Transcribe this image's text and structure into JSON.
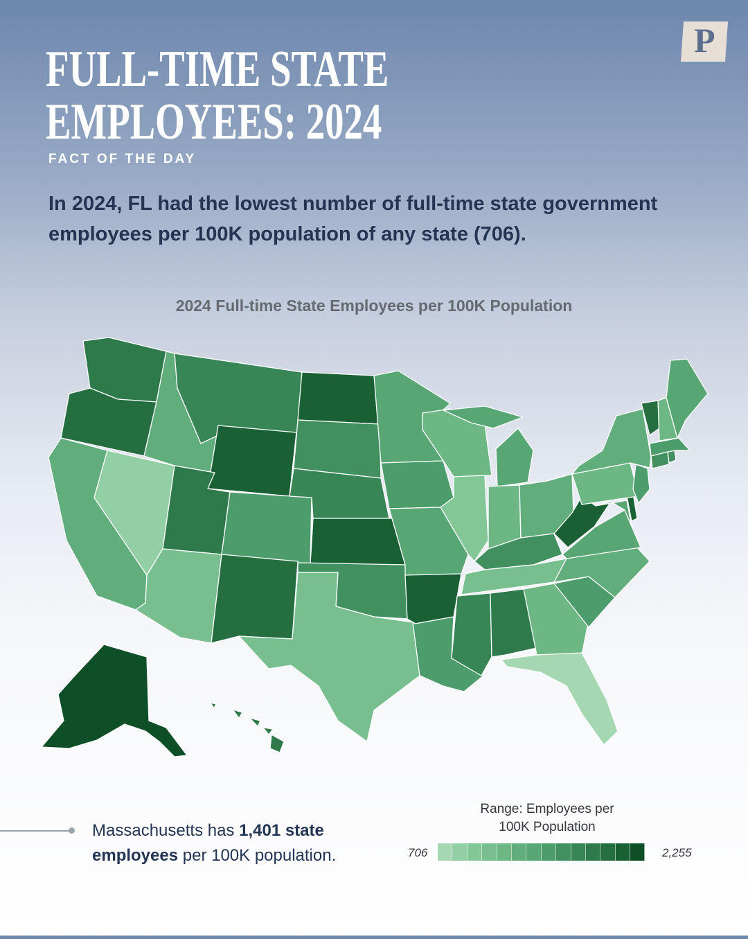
{
  "header": {
    "title_line1": "FULL-TIME STATE",
    "title_line2": "EMPLOYEES: 2024",
    "kicker": "FACT OF THE DAY",
    "logo_letter": "P"
  },
  "fact_text": "In 2024, FL had the lowest number of full-time state government employees per 100K population of any state (706).",
  "map": {
    "title": "2024 Full-time State Employees per 100K Population",
    "color_scale": [
      "#a5d8b2",
      "#93cfa4",
      "#84c797",
      "#78bf8f",
      "#6cb784",
      "#61ae7c",
      "#57a674",
      "#4c9d6b",
      "#428f60",
      "#388556",
      "#2e7a4b",
      "#246e40",
      "#1a6035",
      "#0f4f28"
    ],
    "states": {
      "WA": {
        "shade": 10
      },
      "OR": {
        "shade": 11
      },
      "CA": {
        "shade": 5
      },
      "NV": {
        "shade": 1
      },
      "ID": {
        "shade": 5
      },
      "MT": {
        "shade": 9
      },
      "WY": {
        "shade": 12
      },
      "UT": {
        "shade": 10
      },
      "AZ": {
        "shade": 3
      },
      "CO": {
        "shade": 7
      },
      "NM": {
        "shade": 11
      },
      "ND": {
        "shade": 12
      },
      "SD": {
        "shade": 8
      },
      "NE": {
        "shade": 9
      },
      "KS": {
        "shade": 12
      },
      "OK": {
        "shade": 8
      },
      "TX": {
        "shade": 3
      },
      "MN": {
        "shade": 6
      },
      "IA": {
        "shade": 7
      },
      "MO": {
        "shade": 6
      },
      "AR": {
        "shade": 12
      },
      "LA": {
        "shade": 7
      },
      "WI": {
        "shade": 4
      },
      "IL": {
        "shade": 2
      },
      "MI": {
        "shade": 6
      },
      "IN": {
        "shade": 4
      },
      "OH": {
        "shade": 5
      },
      "KY": {
        "shade": 8
      },
      "TN": {
        "shade": 3
      },
      "MS": {
        "shade": 9
      },
      "AL": {
        "shade": 10
      },
      "GA": {
        "shade": 4
      },
      "FL": {
        "shade": 0
      },
      "SC": {
        "shade": 7
      },
      "NC": {
        "shade": 5
      },
      "VA": {
        "shade": 6
      },
      "WV": {
        "shade": 12
      },
      "PA": {
        "shade": 4
      },
      "NY": {
        "shade": 5
      },
      "VT": {
        "shade": 11
      },
      "NH": {
        "shade": 4
      },
      "ME": {
        "shade": 6
      },
      "MA": {
        "shade": 7
      },
      "CT": {
        "shade": 8
      },
      "RI": {
        "shade": 8
      },
      "NJ": {
        "shade": 7
      },
      "DE": {
        "shade": 12
      },
      "MD": {
        "shade": 6
      },
      "AK": {
        "shade": 13
      },
      "HI": {
        "shade": 10
      }
    }
  },
  "callout": {
    "prefix": "Massachusetts has ",
    "bold1": "1,401 state",
    "bold2": "employees",
    "suffix": " per 100K population."
  },
  "legend": {
    "title_line1": "Range: Employees per",
    "title_line2": "100K Population",
    "min": "706",
    "max": "2,255"
  }
}
